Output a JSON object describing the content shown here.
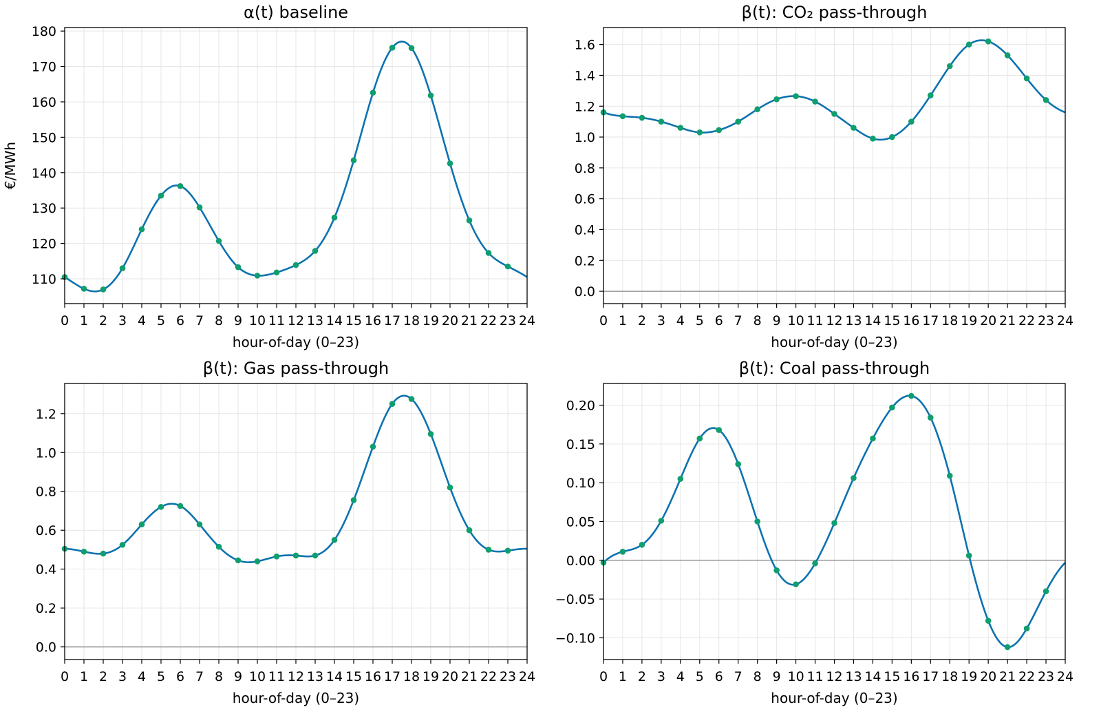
{
  "colors": {
    "line": "#0c72b0",
    "marker": "#0f9e6e",
    "zero_line": "#999999"
  },
  "chart_data": [
    {
      "type": "line",
      "title": "α(t) baseline",
      "xlabel": "hour-of-day (0–23)",
      "ylabel": "€/MWh",
      "xlim": [
        0,
        24
      ],
      "ylim": [
        103,
        181
      ],
      "xticks": [
        0,
        1,
        2,
        3,
        4,
        5,
        6,
        7,
        8,
        9,
        10,
        11,
        12,
        13,
        14,
        15,
        16,
        17,
        18,
        19,
        20,
        21,
        22,
        23,
        24
      ],
      "yticks": [
        110,
        120,
        130,
        140,
        150,
        160,
        170,
        180
      ],
      "ytick_labels": [
        "110",
        "120",
        "130",
        "140",
        "150",
        "160",
        "170",
        "180"
      ],
      "zero_line": false,
      "grid": true,
      "x": [
        0,
        1,
        2,
        3,
        4,
        5,
        6,
        7,
        8,
        9,
        10,
        11,
        12,
        13,
        14,
        15,
        16,
        17,
        18,
        19,
        20,
        21,
        22,
        23
      ],
      "values": [
        110.5,
        107.2,
        107.0,
        113.0,
        124.0,
        133.5,
        136.2,
        130.2,
        120.7,
        113.3,
        110.9,
        111.8,
        113.9,
        117.9,
        127.3,
        143.5,
        162.6,
        175.3,
        175.2,
        161.8,
        142.6,
        126.5,
        117.3,
        113.5
      ],
      "series_markers": true
    },
    {
      "type": "line",
      "title": "β(t): CO₂ pass-through",
      "xlabel": "hour-of-day (0–23)",
      "ylabel": "",
      "xlim": [
        0,
        24
      ],
      "ylim": [
        -0.08,
        1.71
      ],
      "xticks": [
        0,
        1,
        2,
        3,
        4,
        5,
        6,
        7,
        8,
        9,
        10,
        11,
        12,
        13,
        14,
        15,
        16,
        17,
        18,
        19,
        20,
        21,
        22,
        23,
        24
      ],
      "yticks": [
        0.0,
        0.2,
        0.4,
        0.6,
        0.8,
        1.0,
        1.2,
        1.4,
        1.6
      ],
      "ytick_labels": [
        "0.0",
        "0.2",
        "0.4",
        "0.6",
        "0.8",
        "1.0",
        "1.2",
        "1.4",
        "1.6"
      ],
      "zero_line": true,
      "grid": true,
      "x": [
        0,
        1,
        2,
        3,
        4,
        5,
        6,
        7,
        8,
        9,
        10,
        11,
        12,
        13,
        14,
        15,
        16,
        17,
        18,
        19,
        20,
        21,
        22,
        23
      ],
      "values": [
        1.16,
        1.135,
        1.125,
        1.1,
        1.06,
        1.03,
        1.045,
        1.1,
        1.18,
        1.245,
        1.265,
        1.23,
        1.15,
        1.06,
        0.99,
        1.0,
        1.1,
        1.27,
        1.46,
        1.6,
        1.62,
        1.53,
        1.38,
        1.24
      ],
      "series_markers": true
    },
    {
      "type": "line",
      "title": "β(t): Gas pass-through",
      "xlabel": "hour-of-day (0–23)",
      "ylabel": "",
      "xlim": [
        0,
        24
      ],
      "ylim": [
        -0.065,
        1.355
      ],
      "xticks": [
        0,
        1,
        2,
        3,
        4,
        5,
        6,
        7,
        8,
        9,
        10,
        11,
        12,
        13,
        14,
        15,
        16,
        17,
        18,
        19,
        20,
        21,
        22,
        23,
        24
      ],
      "yticks": [
        0.0,
        0.2,
        0.4,
        0.6,
        0.8,
        1.0,
        1.2
      ],
      "ytick_labels": [
        "0.0",
        "0.2",
        "0.4",
        "0.6",
        "0.8",
        "1.0",
        "1.2"
      ],
      "zero_line": true,
      "grid": true,
      "x": [
        0,
        1,
        2,
        3,
        4,
        5,
        6,
        7,
        8,
        9,
        10,
        11,
        12,
        13,
        14,
        15,
        16,
        17,
        18,
        19,
        20,
        21,
        22,
        23
      ],
      "values": [
        0.505,
        0.49,
        0.48,
        0.525,
        0.63,
        0.72,
        0.725,
        0.63,
        0.515,
        0.445,
        0.44,
        0.465,
        0.47,
        0.47,
        0.55,
        0.755,
        1.03,
        1.25,
        1.275,
        1.095,
        0.82,
        0.6,
        0.5,
        0.495
      ],
      "series_markers": true
    },
    {
      "type": "line",
      "title": "β(t): Coal pass-through",
      "xlabel": "hour-of-day (0–23)",
      "ylabel": "",
      "xlim": [
        0,
        24
      ],
      "ylim": [
        -0.128,
        0.228
      ],
      "xticks": [
        0,
        1,
        2,
        3,
        4,
        5,
        6,
        7,
        8,
        9,
        10,
        11,
        12,
        13,
        14,
        15,
        16,
        17,
        18,
        19,
        20,
        21,
        22,
        23,
        24
      ],
      "yticks": [
        -0.1,
        -0.05,
        0.0,
        0.05,
        0.1,
        0.15,
        0.2
      ],
      "ytick_labels": [
        "−0.10",
        "−0.05",
        "0.00",
        "0.05",
        "0.10",
        "0.15",
        "0.20"
      ],
      "zero_line": true,
      "grid": true,
      "x": [
        0,
        1,
        2,
        3,
        4,
        5,
        6,
        7,
        8,
        9,
        10,
        11,
        12,
        13,
        14,
        15,
        16,
        17,
        18,
        19,
        20,
        21,
        22,
        23
      ],
      "values": [
        -0.003,
        0.011,
        0.02,
        0.051,
        0.105,
        0.157,
        0.168,
        0.124,
        0.05,
        -0.013,
        -0.031,
        -0.004,
        0.048,
        0.106,
        0.157,
        0.197,
        0.212,
        0.184,
        0.109,
        0.006,
        -0.078,
        -0.112,
        -0.088,
        -0.04
      ],
      "series_markers": true
    }
  ]
}
